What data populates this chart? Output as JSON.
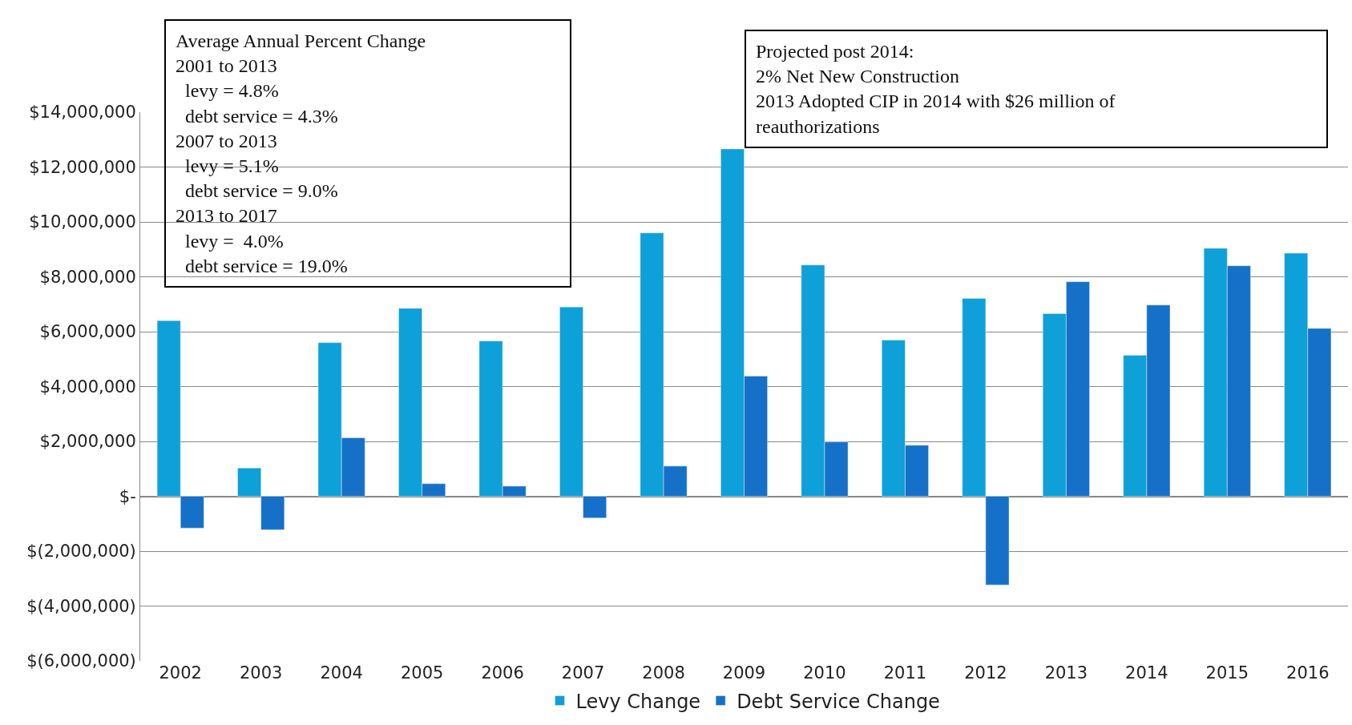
{
  "chart_data": {
    "type": "bar",
    "categories": [
      "2002",
      "2003",
      "2004",
      "2005",
      "2006",
      "2007",
      "2008",
      "2009",
      "2010",
      "2011",
      "2012",
      "2013",
      "2014",
      "2015",
      "2016"
    ],
    "series": [
      {
        "name": "Levy Change",
        "color": "#0ea0d8",
        "values": [
          6400000,
          1030000,
          5600000,
          6850000,
          5660000,
          6900000,
          9600000,
          12660000,
          8430000,
          5690000,
          7210000,
          6660000,
          5140000,
          9040000,
          8860000
        ]
      },
      {
        "name": "Debt Service Change",
        "color": "#1570c8",
        "values": [
          -1160000,
          -1220000,
          2130000,
          460000,
          370000,
          -790000,
          1100000,
          4380000,
          1980000,
          1860000,
          -3230000,
          7820000,
          6970000,
          8400000,
          6120000
        ]
      }
    ],
    "ylim": [
      -6000000,
      14000000
    ],
    "yticks": [
      {
        "value": -6000000,
        "label": "$(6,000,000)"
      },
      {
        "value": -4000000,
        "label": "$(4,000,000)"
      },
      {
        "value": -2000000,
        "label": "$(2,000,000)"
      },
      {
        "value": 0,
        "label": "$-"
      },
      {
        "value": 2000000,
        "label": "$2,000,000"
      },
      {
        "value": 4000000,
        "label": "$4,000,000"
      },
      {
        "value": 6000000,
        "label": "$6,000,000"
      },
      {
        "value": 8000000,
        "label": "$8,000,000"
      },
      {
        "value": 10000000,
        "label": "$10,000,000"
      },
      {
        "value": 12000000,
        "label": "$12,000,000"
      },
      {
        "value": 14000000,
        "label": "$14,000,000"
      }
    ],
    "grid": "y",
    "legend": "bottom",
    "annotations": [
      "Average Annual Percent Change\n2001 to 2013\n  levy = 4.8%\n  debt service = 4.3%\n2007 to 2013\n  levy = 5.1%\n  debt service = 9.0%\n2013 to 2017\n  levy =  4.0%\n  debt service = 19.0%",
      "Projected post 2014:\n2% Net New Construction\n2013 Adopted CIP in 2014 with $26 million of\nreauthorizations"
    ]
  }
}
